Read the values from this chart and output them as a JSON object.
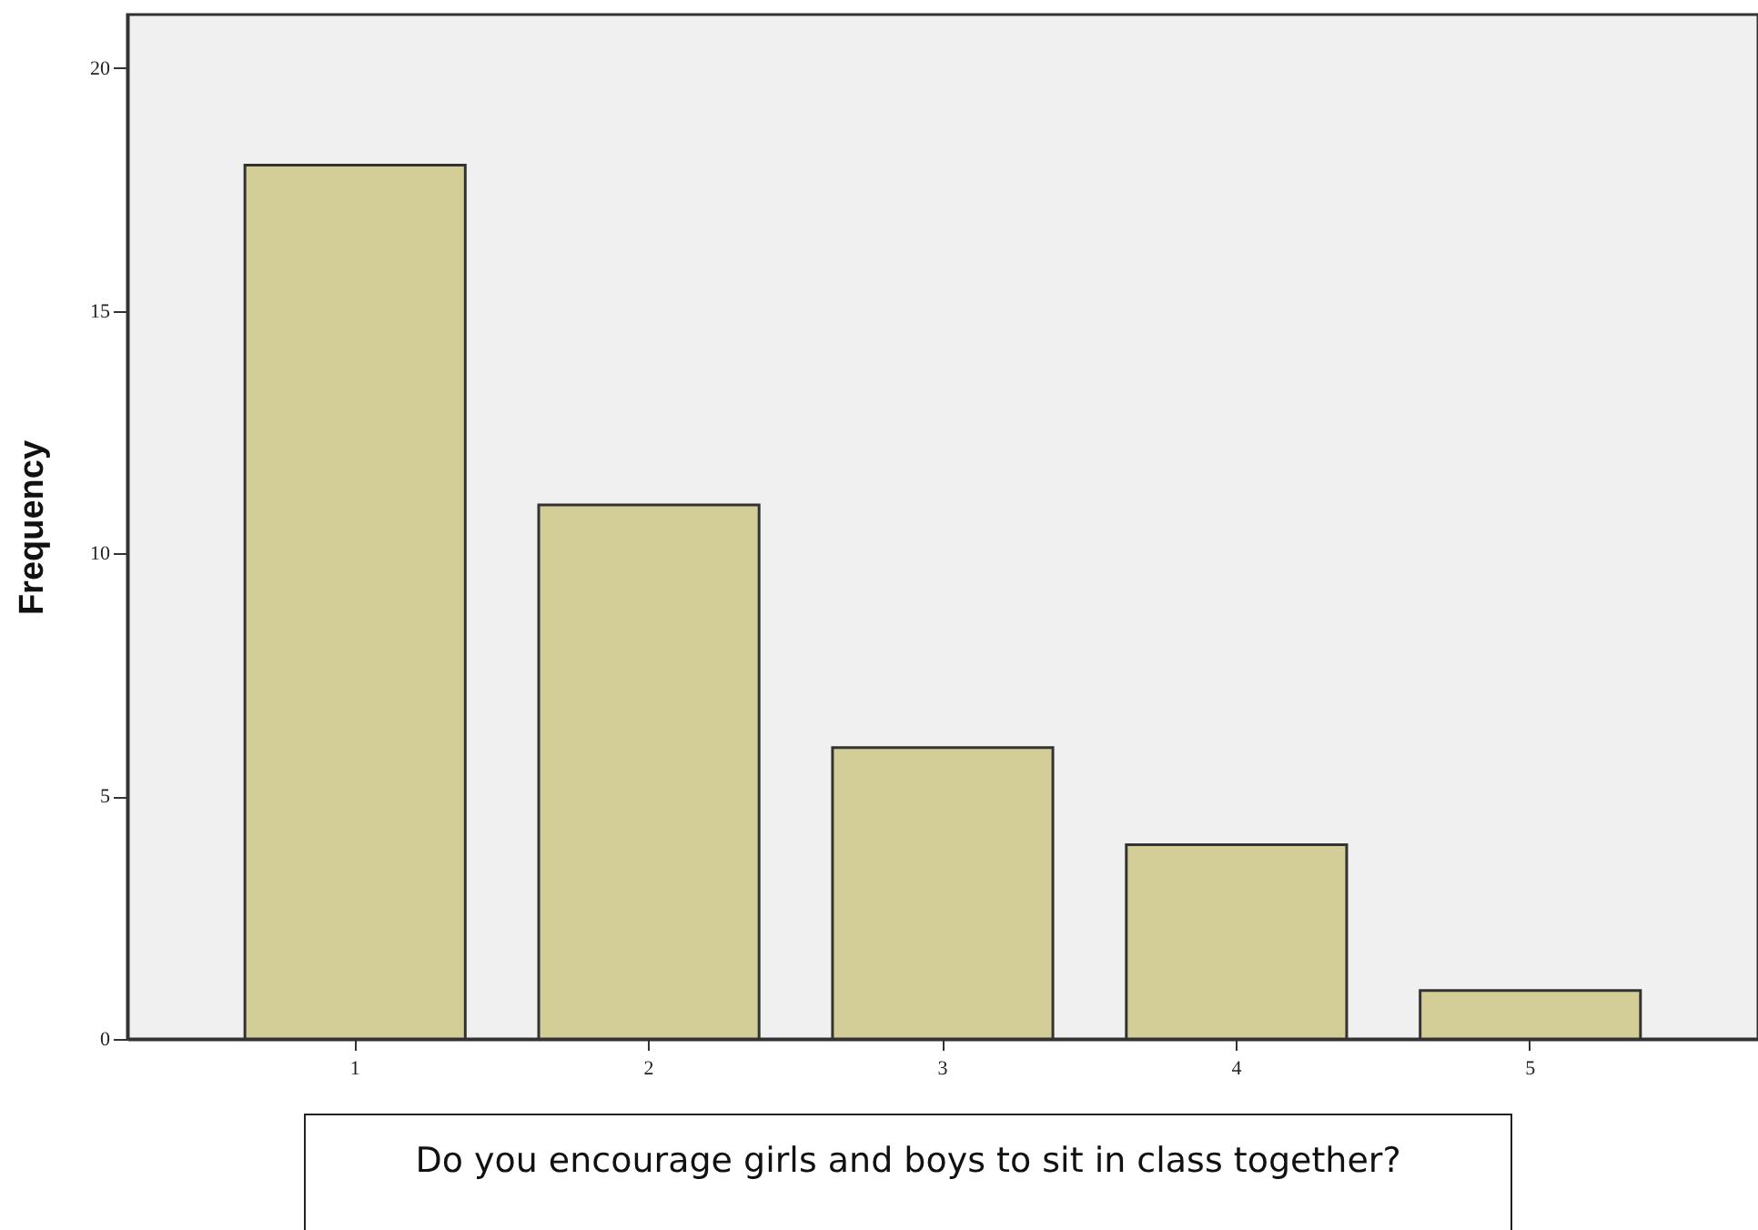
{
  "chart_data": {
    "type": "bar",
    "xlabel": "Do you encourage girls and boys to sit in class together?",
    "ylabel": "Frequency",
    "categories": [
      "1",
      "2",
      "3",
      "4",
      "5"
    ],
    "values": [
      18,
      11,
      6,
      4,
      1
    ],
    "color": "#d3ce97",
    "ylim": [
      0,
      21.1
    ],
    "yticks": [
      0,
      5,
      10,
      15,
      20
    ],
    "grid": false
  }
}
